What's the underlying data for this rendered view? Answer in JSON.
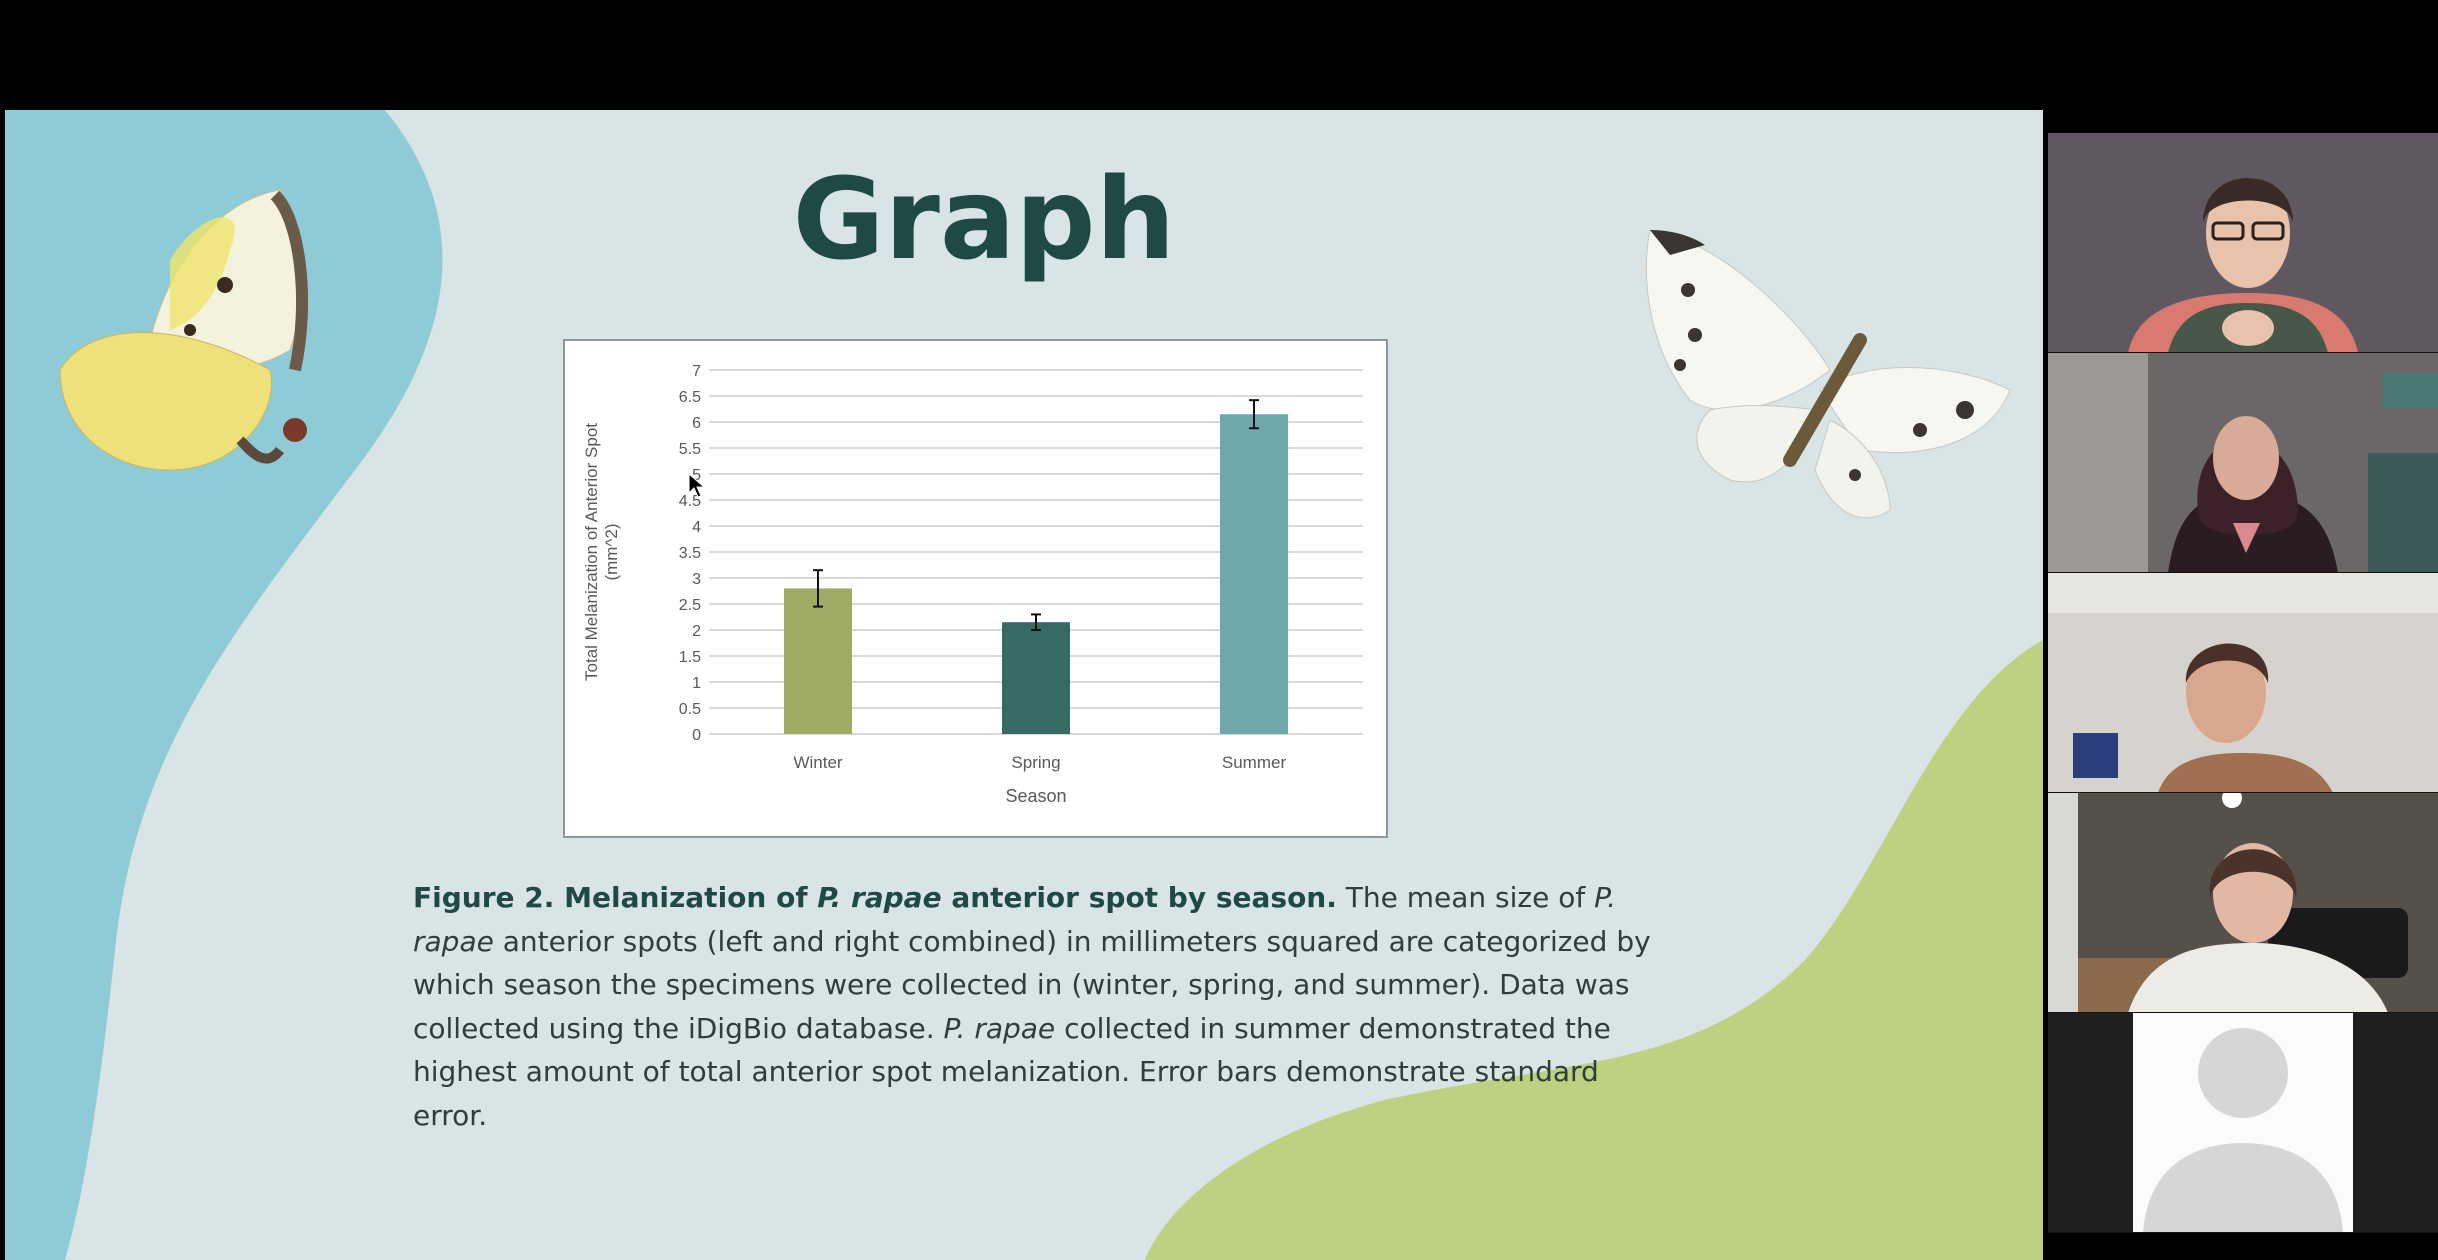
{
  "slide": {
    "title": "Graph",
    "caption": {
      "bold_lead": "Figure 2. Melanization of ",
      "bold_italic": "P. rapae",
      "bold_tail": " anterior spot by season.",
      "text1": " The mean size of ",
      "italic1": "P. rapae",
      "text2": " anterior spots (left and right combined) in millimeters squared are categorized by which season the specimens were collected in (winter, spring, and summer). Data was collected using the iDigBio database. ",
      "italic2": "P. rapae",
      "text3": " collected in summer demonstrated the highest amount of total anterior spot melanization. Error bars demonstrate standard error."
    },
    "colors": {
      "background": "#d8e4e5",
      "blue_blob": "#8fcbd6",
      "green_blob": "#bdd281",
      "title": "#1f4a44"
    }
  },
  "chart_data": {
    "type": "bar",
    "categories": [
      "Winter",
      "Spring",
      "Summer"
    ],
    "values": [
      2.8,
      2.15,
      6.15
    ],
    "error": [
      0.35,
      0.15,
      0.27
    ],
    "colors": [
      "#9fac66",
      "#356b64",
      "#6fa8a9"
    ],
    "xlabel": "Season",
    "ylabel_lines": [
      "Total Melanization of Anterior Spot",
      "(mm^2)"
    ],
    "ylim": [
      0,
      7
    ],
    "yticks": [
      "0",
      "0.5",
      "1",
      "1.5",
      "2",
      "2.5",
      "3",
      "3.5",
      "4",
      "4.5",
      "5",
      "5.5",
      "6",
      "6.5",
      "7"
    ],
    "grid": true,
    "legend": "none"
  },
  "participants": [
    {
      "type": "video"
    },
    {
      "type": "video"
    },
    {
      "type": "video"
    },
    {
      "type": "video"
    },
    {
      "type": "avatar-placeholder"
    }
  ]
}
